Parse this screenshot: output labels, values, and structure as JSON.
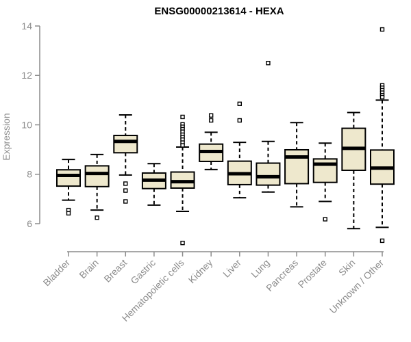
{
  "colors": {
    "box_fill": "#EEE8CD",
    "box_stroke": "#000000",
    "axis": "#8c8c8c",
    "tick_text": "#8c8c8c",
    "title_text": "#000000",
    "background": "#ffffff"
  },
  "chart_data": {
    "type": "boxplot",
    "title": "ENSG00000213614 - HEXA",
    "xlabel": "",
    "ylabel": "Expression",
    "ylim": [
      5.1,
      14.1
    ],
    "yticks": [
      6,
      8,
      10,
      12,
      14
    ],
    "grid": false,
    "legend": "none",
    "categories": [
      "Bladder",
      "Brain",
      "Breast",
      "Gastric",
      "Hematopoietic cells",
      "Kidney",
      "Liver",
      "Lung",
      "Pancreas",
      "Prostate",
      "Skin",
      "Unknown / Other"
    ],
    "series": [
      {
        "category": "Bladder",
        "whislo": 6.95,
        "q1": 7.52,
        "med": 7.95,
        "q3": 8.18,
        "whishi": 8.6,
        "outliers": [
          6.55,
          6.42
        ]
      },
      {
        "category": "Brain",
        "whislo": 6.55,
        "q1": 7.5,
        "med": 8.03,
        "q3": 8.34,
        "whishi": 8.8,
        "outliers": [
          6.24
        ]
      },
      {
        "category": "Breast",
        "whislo": 7.97,
        "q1": 8.87,
        "med": 9.33,
        "q3": 9.57,
        "whishi": 10.4,
        "outliers": [
          7.62,
          7.34,
          6.9
        ]
      },
      {
        "category": "Gastric",
        "whislo": 6.75,
        "q1": 7.42,
        "med": 7.76,
        "q3": 8.05,
        "whishi": 8.43,
        "outliers": []
      },
      {
        "category": "Hematopoietic cells",
        "whislo": 6.5,
        "q1": 7.44,
        "med": 7.7,
        "q3": 8.09,
        "whishi": 9.1,
        "outliers": [
          10.32,
          10.02,
          9.92,
          9.82,
          9.72,
          9.6,
          9.5,
          9.4,
          9.28,
          9.17,
          5.22
        ]
      },
      {
        "category": "Kidney",
        "whislo": 8.19,
        "q1": 8.52,
        "med": 8.92,
        "q3": 9.22,
        "whishi": 9.7,
        "outliers": [
          10.38,
          10.18
        ]
      },
      {
        "category": "Liver",
        "whislo": 7.05,
        "q1": 7.58,
        "med": 8.02,
        "q3": 8.53,
        "whishi": 9.29,
        "outliers": [
          10.85,
          10.18
        ]
      },
      {
        "category": "Lung",
        "whislo": 7.28,
        "q1": 7.56,
        "med": 7.9,
        "q3": 8.45,
        "whishi": 9.33,
        "outliers": [
          12.5
        ]
      },
      {
        "category": "Pancreas",
        "whislo": 6.68,
        "q1": 7.62,
        "med": 8.7,
        "q3": 8.99,
        "whishi": 10.09,
        "outliers": []
      },
      {
        "category": "Prostate",
        "whislo": 6.9,
        "q1": 7.67,
        "med": 8.41,
        "q3": 8.62,
        "whishi": 9.26,
        "outliers": [
          6.18
        ]
      },
      {
        "category": "Skin",
        "whislo": 5.8,
        "q1": 8.16,
        "med": 9.05,
        "q3": 9.86,
        "whishi": 10.5,
        "outliers": []
      },
      {
        "category": "Unknown / Other",
        "whislo": 5.85,
        "q1": 7.6,
        "med": 8.25,
        "q3": 8.98,
        "whishi": 11.0,
        "outliers": [
          13.86,
          11.6,
          11.5,
          11.4,
          11.3,
          11.2,
          11.12,
          5.31
        ]
      }
    ]
  }
}
